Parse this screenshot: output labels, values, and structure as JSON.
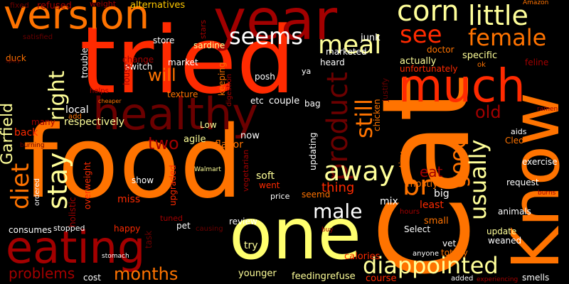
{
  "palette": {
    "orange": "#ff7300",
    "red": "#ff2a00",
    "dark_red": "#a30000",
    "deep_red": "#6b0000",
    "yellow": "#ffff6e",
    "light_yellow": "#ffff99",
    "white": "#ffffff",
    "gold": "#ffc800"
  },
  "words": [
    {
      "text": "food",
      "color": "#ff7300"
    },
    {
      "text": "Cat",
      "color": "#ff7300"
    },
    {
      "text": "tried",
      "color": "#ff2a00"
    },
    {
      "text": "one",
      "color": "#ffff6e"
    },
    {
      "text": "Know",
      "color": "#ff7300"
    },
    {
      "text": "healthy",
      "color": "#6b0000"
    },
    {
      "text": "year",
      "color": "#a30000"
    },
    {
      "text": "version",
      "color": "#ff7300"
    },
    {
      "text": "eating",
      "color": "#a30000"
    },
    {
      "text": "much",
      "color": "#ff2a00"
    },
    {
      "text": "meal",
      "color": "#ffff99"
    },
    {
      "text": "corn",
      "color": "#ffff99"
    },
    {
      "text": "little",
      "color": "#ffff99"
    },
    {
      "text": "see",
      "color": "#ff2a00"
    },
    {
      "text": "female",
      "color": "#ff7300"
    },
    {
      "text": "seems",
      "color": "#ffffff"
    },
    {
      "text": "right",
      "color": "#ffff99"
    },
    {
      "text": "diet",
      "color": "#ff7300"
    },
    {
      "text": "stay",
      "color": "#ffff99"
    },
    {
      "text": "product",
      "color": "#6b0000"
    },
    {
      "text": "still",
      "color": "#ff7300"
    },
    {
      "text": "usually",
      "color": "#ffff99"
    },
    {
      "text": "good",
      "color": "#ff7300"
    },
    {
      "text": "old",
      "color": "#a30000"
    },
    {
      "text": "away",
      "color": "#ffff99"
    },
    {
      "text": "male",
      "color": "#ffffff"
    },
    {
      "text": "br",
      "color": "#ff7300"
    },
    {
      "text": "diappointed",
      "color": "#ffff99"
    },
    {
      "text": "months",
      "color": "#ff7300"
    },
    {
      "text": "Garfield",
      "color": "#ffff99"
    },
    {
      "text": "two",
      "color": "#a30000"
    },
    {
      "text": "will",
      "color": "#ff7300"
    },
    {
      "text": "eat",
      "color": "#a30000"
    },
    {
      "text": "thing",
      "color": "#ff2a00"
    },
    {
      "text": "problems",
      "color": "#a30000"
    },
    {
      "text": "refused",
      "color": "#a30000"
    },
    {
      "text": "weight",
      "color": "#a30000"
    },
    {
      "text": "alternatives",
      "color": "#ffc800"
    },
    {
      "text": "stars",
      "color": "#a30000"
    },
    {
      "text": "junk",
      "color": "#ffffff"
    },
    {
      "text": "Amazon",
      "color": "#ff7300"
    },
    {
      "text": "fixed",
      "color": "#6b0000"
    },
    {
      "text": "satisfied",
      "color": "#6b0000"
    },
    {
      "text": "store",
      "color": "#ffffff"
    },
    {
      "text": "sardine",
      "color": "#ffff99"
    },
    {
      "text": "marketed",
      "color": "#ffffff"
    },
    {
      "text": "doctor",
      "color": "#ff7300"
    },
    {
      "text": "duck",
      "color": "#ff7300"
    },
    {
      "text": "change",
      "color": "#a30000"
    },
    {
      "text": "trouble",
      "color": "#ffffff"
    },
    {
      "text": "heard",
      "color": "#ffffff"
    },
    {
      "text": "actually",
      "color": "#ffff99"
    },
    {
      "text": "specific",
      "color": "#ffff99"
    },
    {
      "text": "feline",
      "color": "#a30000"
    },
    {
      "text": "market",
      "color": "#ffffff"
    },
    {
      "text": "switch",
      "color": "#ffffff"
    },
    {
      "text": "lousy",
      "color": "#a30000"
    },
    {
      "text": "keeping",
      "color": "#ff7300"
    },
    {
      "text": "posh",
      "color": "#ffffff"
    },
    {
      "text": "ya",
      "color": "#ffffff"
    },
    {
      "text": "unfortunately",
      "color": "#ff2a00"
    },
    {
      "text": "ok",
      "color": "#ff7300"
    },
    {
      "text": "helps",
      "color": "#a30000"
    },
    {
      "text": "texture",
      "color": "#ff7300"
    },
    {
      "text": "digestion",
      "color": "#a30000"
    },
    {
      "text": "etc",
      "color": "#ffffff"
    },
    {
      "text": "couple",
      "color": "#ffffff"
    },
    {
      "text": "bag",
      "color": "#ffffff"
    },
    {
      "text": "local",
      "color": "#ffffff"
    },
    {
      "text": "many",
      "color": "#a30000"
    },
    {
      "text": "back",
      "color": "#ff2a00"
    },
    {
      "text": "respectively",
      "color": "#ffff99"
    },
    {
      "text": "Low",
      "color": "#ffff99"
    },
    {
      "text": "now",
      "color": "#ffffff"
    },
    {
      "text": "agile",
      "color": "#ffff99"
    },
    {
      "text": "flavor",
      "color": "#ff7300"
    },
    {
      "text": "updating",
      "color": "#ffffff"
    },
    {
      "text": "chicken",
      "color": "#ff7300"
    },
    {
      "text": "justify",
      "color": "#6b0000"
    },
    {
      "text": "tiny",
      "color": "#ff7300"
    },
    {
      "text": "ramen",
      "color": "#a30000"
    },
    {
      "text": "aids",
      "color": "#ffffff"
    },
    {
      "text": "Cleo",
      "color": "#ff7300"
    },
    {
      "text": "exercise",
      "color": "#ffffff"
    },
    {
      "text": "burning",
      "color": "#6b0000"
    },
    {
      "text": "overweight",
      "color": "#ff2a00"
    },
    {
      "text": "Walmart",
      "color": "#ffff99"
    },
    {
      "text": "show",
      "color": "#ffffff"
    },
    {
      "text": "vegetarian",
      "color": "#a30000"
    },
    {
      "text": "soft",
      "color": "#ffff99"
    },
    {
      "text": "went",
      "color": "#ff2a00"
    },
    {
      "text": "seemd",
      "color": "#ff7300"
    },
    {
      "text": "mix",
      "color": "#ffffff"
    },
    {
      "text": "mostly",
      "color": "#ff7300"
    },
    {
      "text": "big",
      "color": "#ffffff"
    },
    {
      "text": "least",
      "color": "#ff2a00"
    },
    {
      "text": "request",
      "color": "#ffffff"
    },
    {
      "text": "burns",
      "color": "#a30000"
    },
    {
      "text": "ordered",
      "color": "#ffffff"
    },
    {
      "text": "holistic",
      "color": "#a30000"
    },
    {
      "text": "miss",
      "color": "#ff2a00"
    },
    {
      "text": "upgraded",
      "color": "#ff2a00"
    },
    {
      "text": "price",
      "color": "#ffffff"
    },
    {
      "text": "hours",
      "color": "#a30000"
    },
    {
      "text": "small",
      "color": "#ff7300"
    },
    {
      "text": "animals",
      "color": "#ffffff"
    },
    {
      "text": "consumes",
      "color": "#ffffff"
    },
    {
      "text": "stopped",
      "color": "#ffffff"
    },
    {
      "text": "happy",
      "color": "#ff2a00"
    },
    {
      "text": "tuned",
      "color": "#a30000"
    },
    {
      "text": "pet",
      "color": "#ffffff"
    },
    {
      "text": "review",
      "color": "#ffffff"
    },
    {
      "text": "buy",
      "color": "#a30000"
    },
    {
      "text": "Select",
      "color": "#ffffff"
    },
    {
      "text": "update",
      "color": "#ffff99"
    },
    {
      "text": "weaned",
      "color": "#ffffff"
    },
    {
      "text": "vet",
      "color": "#ffffff"
    },
    {
      "text": "try",
      "color": "#ffff99"
    },
    {
      "text": "calories",
      "color": "#ff2a00"
    },
    {
      "text": "totally",
      "color": "#ff7300"
    },
    {
      "text": "anyone",
      "color": "#ffffff"
    },
    {
      "text": "younger",
      "color": "#ffff99"
    },
    {
      "text": "feeding",
      "color": "#ffff99"
    },
    {
      "text": "refuse",
      "color": "#ffff99"
    },
    {
      "text": "course",
      "color": "#ff2a00"
    },
    {
      "text": "added",
      "color": "#ffffff"
    },
    {
      "text": "smells",
      "color": "#ffffff"
    },
    {
      "text": "cost",
      "color": "#ffffff"
    },
    {
      "text": "stomach",
      "color": "#ffffff"
    },
    {
      "text": "experiencing",
      "color": "#a30000"
    },
    {
      "text": "cheaper",
      "color": "#ff7300"
    },
    {
      "text": "add",
      "color": "#ff7300"
    },
    {
      "text": "spicy",
      "color": "#6b0000"
    },
    {
      "text": "task",
      "color": "#6b0000"
    },
    {
      "text": "causing",
      "color": "#6b0000"
    }
  ]
}
